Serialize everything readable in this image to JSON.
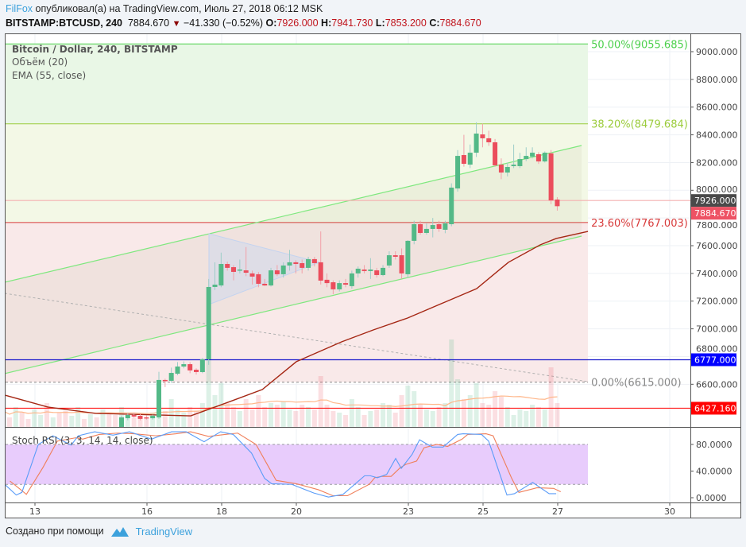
{
  "header": {
    "user": "FilFox",
    "published": "опубликовал(а) на TradingView.com, Июль 27, 2018 06:12 MSK",
    "symbol": "BITSTAMP:BTCUSD, 240",
    "last": "7884.670",
    "change": "−41.330 (−0.52%)",
    "o_label": "O:",
    "o": "7926.000",
    "h_label": "H:",
    "h": "7941.730",
    "l_label": "L:",
    "l": "7853.200",
    "c_label": "C:",
    "c": "7884.670"
  },
  "legend": {
    "title": "Bitcoin / Dollar, 240, BITSTAMP",
    "volume": "Объём (20)",
    "ema": "EMA (55, close)",
    "stoch": "Stoch RSI (3, 3, 14, 14, close)"
  },
  "footer": {
    "created_with": "Создано при помощи",
    "brand": "TradingView"
  },
  "colors": {
    "up": "#53b987",
    "down": "#eb4d5c",
    "ema": "#a52714",
    "vol_ma": "#ffb78a",
    "stoch_k": "#5a9cf8",
    "stoch_d": "#f07f5a",
    "stoch_band": "#e8ccfc"
  },
  "chart_data": {
    "type": "candlestick",
    "price_axis": {
      "min": 6292,
      "max": 9130,
      "ticks": [
        "9000.000",
        "8800.000",
        "8600.000",
        "8400.000",
        "8200.000",
        "8000.000",
        "7800.000",
        "7600.000",
        "7400.000",
        "7200.000",
        "7000.000",
        "6800.000",
        "6600.000"
      ],
      "tick_values": [
        9000,
        8800,
        8600,
        8400,
        8200,
        8000,
        7800,
        7600,
        7400,
        7200,
        7000,
        6800,
        6600
      ]
    },
    "x_axis": {
      "labels": [
        "13",
        "16",
        "18",
        "20",
        "23",
        "25",
        "27",
        "30"
      ],
      "days": [
        13,
        16,
        18,
        20,
        23,
        25,
        27,
        30
      ]
    },
    "candles_start_day": 15.319,
    "candle_interval_days": 0.1667,
    "candles": [
      [
        6292,
        6375,
        6280,
        6361
      ],
      [
        6355,
        6390,
        6340,
        6378
      ],
      [
        6378,
        6395,
        6360,
        6367
      ],
      [
        6372,
        6385,
        6340,
        6350
      ],
      [
        6361,
        6375,
        6345,
        6358
      ],
      [
        6355,
        6380,
        6345,
        6372
      ],
      [
        6361,
        6690,
        6350,
        6631
      ],
      [
        6631,
        6640,
        6580,
        6625
      ],
      [
        6625,
        6720,
        6610,
        6682
      ],
      [
        6676,
        6760,
        6665,
        6728
      ],
      [
        6728,
        6765,
        6715,
        6745
      ],
      [
        6745,
        6760,
        6680,
        6700
      ],
      [
        6705,
        6715,
        6670,
        6688
      ],
      [
        6688,
        6790,
        6680,
        6780
      ],
      [
        6780,
        7360,
        6740,
        7302
      ],
      [
        7302,
        7480,
        7280,
        7319
      ],
      [
        7313,
        7550,
        7300,
        7468
      ],
      [
        7468,
        7485,
        7420,
        7440
      ],
      [
        7445,
        7460,
        7350,
        7411
      ],
      [
        7422,
        7500,
        7400,
        7428
      ],
      [
        7422,
        7590,
        7380,
        7405
      ],
      [
        7400,
        7420,
        7320,
        7377
      ],
      [
        7394,
        7410,
        7300,
        7325
      ],
      [
        7325,
        7360,
        7310,
        7313
      ],
      [
        7313,
        7440,
        7305,
        7422
      ],
      [
        7422,
        7460,
        7380,
        7394
      ],
      [
        7394,
        7480,
        7370,
        7457
      ],
      [
        7457,
        7570,
        7420,
        7480
      ],
      [
        7480,
        7495,
        7400,
        7468
      ],
      [
        7474,
        7500,
        7400,
        7440
      ],
      [
        7440,
        7520,
        7420,
        7503
      ],
      [
        7503,
        7520,
        7450,
        7474
      ],
      [
        7480,
        7703,
        7320,
        7348
      ],
      [
        7354,
        7400,
        7300,
        7330
      ],
      [
        7336,
        7350,
        7250,
        7285
      ],
      [
        7285,
        7350,
        7270,
        7330
      ],
      [
        7330,
        7360,
        7300,
        7319
      ],
      [
        7308,
        7420,
        7290,
        7400
      ],
      [
        7400,
        7450,
        7370,
        7434
      ],
      [
        7428,
        7460,
        7400,
        7417
      ],
      [
        7417,
        7510,
        7360,
        7428
      ],
      [
        7422,
        7440,
        7370,
        7388
      ],
      [
        7388,
        7460,
        7380,
        7440
      ],
      [
        7457,
        7560,
        7440,
        7531
      ],
      [
        7531,
        7560,
        7500,
        7520
      ],
      [
        7531,
        7580,
        7360,
        7400
      ],
      [
        7394,
        7640,
        7370,
        7635
      ],
      [
        7635,
        7780,
        7610,
        7755
      ],
      [
        7755,
        7780,
        7680,
        7692
      ],
      [
        7692,
        7760,
        7680,
        7721
      ],
      [
        7721,
        7800,
        7660,
        7749
      ],
      [
        7755,
        7780,
        7700,
        7721
      ],
      [
        7715,
        7780,
        7690,
        7761
      ],
      [
        7755,
        8050,
        7740,
        8019
      ],
      [
        8013,
        8290,
        7990,
        8248
      ],
      [
        8254,
        8400,
        8170,
        8191
      ],
      [
        8185,
        8330,
        8160,
        8271
      ],
      [
        8271,
        8490,
        8240,
        8409
      ],
      [
        8403,
        8480,
        8310,
        8375
      ],
      [
        8375,
        8430,
        8320,
        8346
      ],
      [
        8346,
        8370,
        8170,
        8180
      ],
      [
        8185,
        8230,
        8080,
        8128
      ],
      [
        8128,
        8200,
        8100,
        8168
      ],
      [
        8174,
        8330,
        8160,
        8185
      ],
      [
        8174,
        8270,
        8160,
        8225
      ],
      [
        8225,
        8310,
        8210,
        8248
      ],
      [
        8243,
        8310,
        8230,
        8271
      ],
      [
        8260,
        8275,
        8190,
        8208
      ],
      [
        8208,
        8280,
        8200,
        8271
      ],
      [
        8266,
        8290,
        7900,
        7927
      ],
      [
        7933,
        7950,
        7853,
        7885
      ]
    ],
    "volume_start_index": -19,
    "volume_pre_colors": [
      "up",
      "down",
      "up",
      "down",
      "down",
      "up",
      "up",
      "down",
      "up",
      "down",
      "down",
      "up",
      "up",
      "down",
      "up",
      "down",
      "up",
      "down",
      "down"
    ],
    "volumes": [
      20,
      12,
      25,
      18,
      10,
      22,
      15,
      30,
      12,
      18,
      20,
      14,
      25,
      10,
      16,
      12,
      22,
      18,
      15,
      25,
      15,
      12,
      14,
      10,
      18,
      46,
      20,
      35,
      22,
      18,
      25,
      20,
      30,
      85,
      40,
      55,
      30,
      25,
      20,
      35,
      22,
      40,
      25,
      30,
      28,
      32,
      22,
      20,
      28,
      25,
      22,
      64,
      28,
      20,
      18,
      15,
      35,
      25,
      15,
      20,
      22,
      30,
      28,
      18,
      40,
      52,
      45,
      28,
      22,
      20,
      25,
      30,
      110,
      60,
      35,
      40,
      55,
      30,
      28,
      45,
      38,
      25,
      15,
      22,
      20,
      28,
      25,
      22,
      75,
      30
    ],
    "ema55": [
      [
        12.19,
        6522
      ],
      [
        13.34,
        6436
      ],
      [
        14.62,
        6390
      ],
      [
        17.17,
        6372
      ],
      [
        18.23,
        6476
      ],
      [
        19.09,
        6562
      ],
      [
        20.0,
        6763
      ],
      [
        21.21,
        6906
      ],
      [
        22.06,
        6992
      ],
      [
        22.98,
        7078
      ],
      [
        23.98,
        7193
      ],
      [
        24.83,
        7290
      ],
      [
        25.68,
        7480
      ],
      [
        26.53,
        7606
      ],
      [
        26.96,
        7652
      ],
      [
        27.81,
        7703
      ]
    ],
    "fib": {
      "end_day": 27.81,
      "levels": [
        {
          "label": "50.00%(9055.685)",
          "price": 9055.685,
          "color": "#4cd04c"
        },
        {
          "label": "38.20%(8479.684)",
          "price": 8479.684,
          "color": "#9ccc3c"
        },
        {
          "label": "23.60%(7767.003)",
          "price": 7767.003,
          "color": "#d83a3a"
        },
        {
          "label": "0.00%(6615.000)",
          "price": 6615.0,
          "color": "#888888"
        }
      ]
    },
    "channel": {
      "upper": [
        [
          12.19,
          7336
        ],
        [
          27.64,
          8323
        ]
      ],
      "lower": [
        [
          12.19,
          6677
        ],
        [
          27.64,
          7669
        ]
      ]
    },
    "trendline_dotted": [
      [
        12.19,
        7256
      ],
      [
        27.81,
        6619
      ]
    ],
    "triangle": [
      [
        17.66,
        7686
      ],
      [
        17.66,
        7176
      ],
      [
        20.62,
        7480
      ]
    ],
    "horizontal_lines": [
      {
        "price": 7926.0,
        "label": "7926.000",
        "line": "#f4b0b0",
        "bg": "#4a4a4a"
      },
      {
        "price": 7884.67,
        "label": "7884.670",
        "line": null,
        "bg": "#ee5264"
      },
      {
        "price": 6777.0,
        "label": "6777.000",
        "line": "#1a1acc",
        "bg": "#0000ff"
      },
      {
        "price": 6427.16,
        "label": "6427.160",
        "line": "#ff1a1a",
        "bg": "#ff0000"
      }
    ],
    "stoch_rsi": {
      "ticks": [
        "80.0000",
        "40.0000",
        "0.0000"
      ],
      "tick_values": [
        80,
        40,
        0
      ],
      "band": [
        20,
        80
      ],
      "days": [
        12.21,
        12.5,
        12.65,
        13.09,
        13.48,
        13.97,
        14.16,
        14.6,
        15.09,
        15.53,
        16.12,
        16.66,
        17.05,
        17.53,
        17.97,
        18.31,
        18.8,
        19.15,
        19.34,
        19.88,
        20.47,
        20.86,
        21.25,
        21.83,
        21.98,
        22.17,
        22.42,
        22.66,
        22.81,
        23.1,
        23.3,
        23.64,
        23.93,
        24.32,
        24.47,
        24.96,
        25.15,
        25.64,
        25.84,
        26.33,
        26.77,
        26.96
      ],
      "k": [
        19,
        4,
        8,
        80,
        93,
        79,
        93,
        99,
        94,
        99,
        88,
        99,
        99,
        84,
        99,
        95,
        67,
        29,
        21,
        20,
        7,
        1,
        5,
        33,
        33,
        30,
        35,
        59,
        44,
        65,
        87,
        76,
        76,
        95,
        96,
        95,
        85,
        4,
        6,
        23,
        6,
        6
      ],
      "d": [
        25,
        12,
        5,
        45,
        85,
        90,
        88,
        95,
        97,
        96,
        93,
        96,
        99,
        92,
        95,
        97,
        80,
        45,
        26,
        21,
        12,
        3,
        3,
        20,
        30,
        32,
        32,
        45,
        50,
        55,
        75,
        80,
        77,
        88,
        95,
        96,
        93,
        30,
        8,
        15,
        14,
        9
      ]
    }
  }
}
